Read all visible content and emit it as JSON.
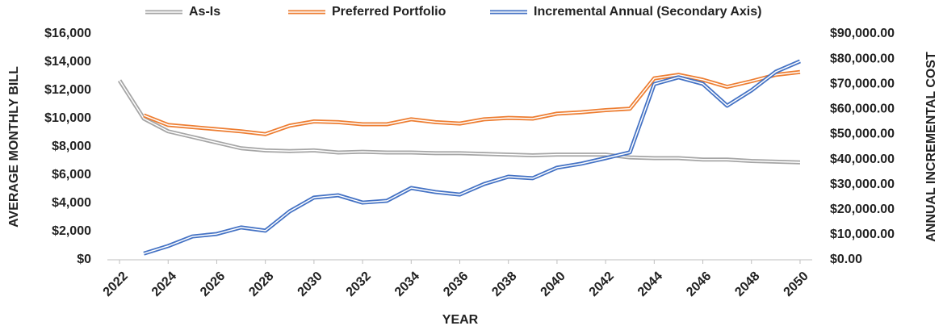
{
  "chart_data": {
    "type": "line",
    "x_label": "YEAR",
    "y_label": "AVERAGE MONTHLY BILL",
    "y2_label": "ANNUAL INCREMENTAL COST",
    "x": [
      2022,
      2023,
      2024,
      2025,
      2026,
      2027,
      2028,
      2029,
      2030,
      2031,
      2032,
      2033,
      2034,
      2035,
      2036,
      2037,
      2038,
      2039,
      2040,
      2041,
      2042,
      2043,
      2044,
      2045,
      2046,
      2047,
      2048,
      2049,
      2050
    ],
    "xlim": [
      2021.5,
      2050.5
    ],
    "xticks": [
      2022,
      2024,
      2026,
      2028,
      2030,
      2032,
      2034,
      2036,
      2038,
      2040,
      2042,
      2044,
      2046,
      2048,
      2050
    ],
    "ylim": [
      0,
      16000
    ],
    "yticks": [
      {
        "value": 0,
        "label": "$0"
      },
      {
        "value": 2000,
        "label": "$2,000"
      },
      {
        "value": 4000,
        "label": "$4,000"
      },
      {
        "value": 6000,
        "label": "$6,000"
      },
      {
        "value": 8000,
        "label": "$8,000"
      },
      {
        "value": 10000,
        "label": "$10,000"
      },
      {
        "value": 12000,
        "label": "$12,000"
      },
      {
        "value": 14000,
        "label": "$14,000"
      },
      {
        "value": 16000,
        "label": "$16,000"
      }
    ],
    "y2lim": [
      0,
      90000
    ],
    "y2ticks": [
      {
        "value": 0,
        "label": "$0.00"
      },
      {
        "value": 10000,
        "label": "$10,000.00"
      },
      {
        "value": 20000,
        "label": "$20,000.00"
      },
      {
        "value": 30000,
        "label": "$30,000.00"
      },
      {
        "value": 40000,
        "label": "$40,000.00"
      },
      {
        "value": 50000,
        "label": "$50,000.00"
      },
      {
        "value": 60000,
        "label": "$60,000.00"
      },
      {
        "value": 70000,
        "label": "$70,000.00"
      },
      {
        "value": 80000,
        "label": "$80,000.00"
      },
      {
        "value": 90000,
        "label": "$90,000.00"
      }
    ],
    "legend": "top",
    "series": [
      {
        "name": "As-Is",
        "color": "#a5a5a5",
        "values": [
          12700,
          10000,
          9100,
          8700,
          8300,
          7900,
          7750,
          7700,
          7750,
          7600,
          7650,
          7600,
          7600,
          7550,
          7550,
          7500,
          7450,
          7400,
          7450,
          7450,
          7450,
          7250,
          7200,
          7200,
          7100,
          7100,
          7000,
          6950,
          6900
        ]
      },
      {
        "name": "Preferred Portfolio",
        "color": "#ed7d31",
        "values": [
          null,
          10230,
          9550,
          9400,
          9250,
          9100,
          8900,
          9500,
          9800,
          9750,
          9600,
          9600,
          9950,
          9750,
          9650,
          9950,
          10050,
          10000,
          10350,
          10450,
          10600,
          10700,
          12850,
          13100,
          12750,
          12250,
          12650,
          13100,
          13300
        ]
      },
      {
        "name": "Incremental Annual (Secondary Axis)",
        "color": "#4472c4",
        "axis": "y2",
        "values": [
          null,
          2500,
          5500,
          9300,
          10300,
          12900,
          11600,
          19300,
          24800,
          25700,
          22800,
          23500,
          28600,
          27000,
          26000,
          30200,
          33100,
          32500,
          36700,
          38300,
          40500,
          42800,
          70000,
          72700,
          70100,
          61400,
          67500,
          74900,
          79100
        ]
      }
    ]
  }
}
